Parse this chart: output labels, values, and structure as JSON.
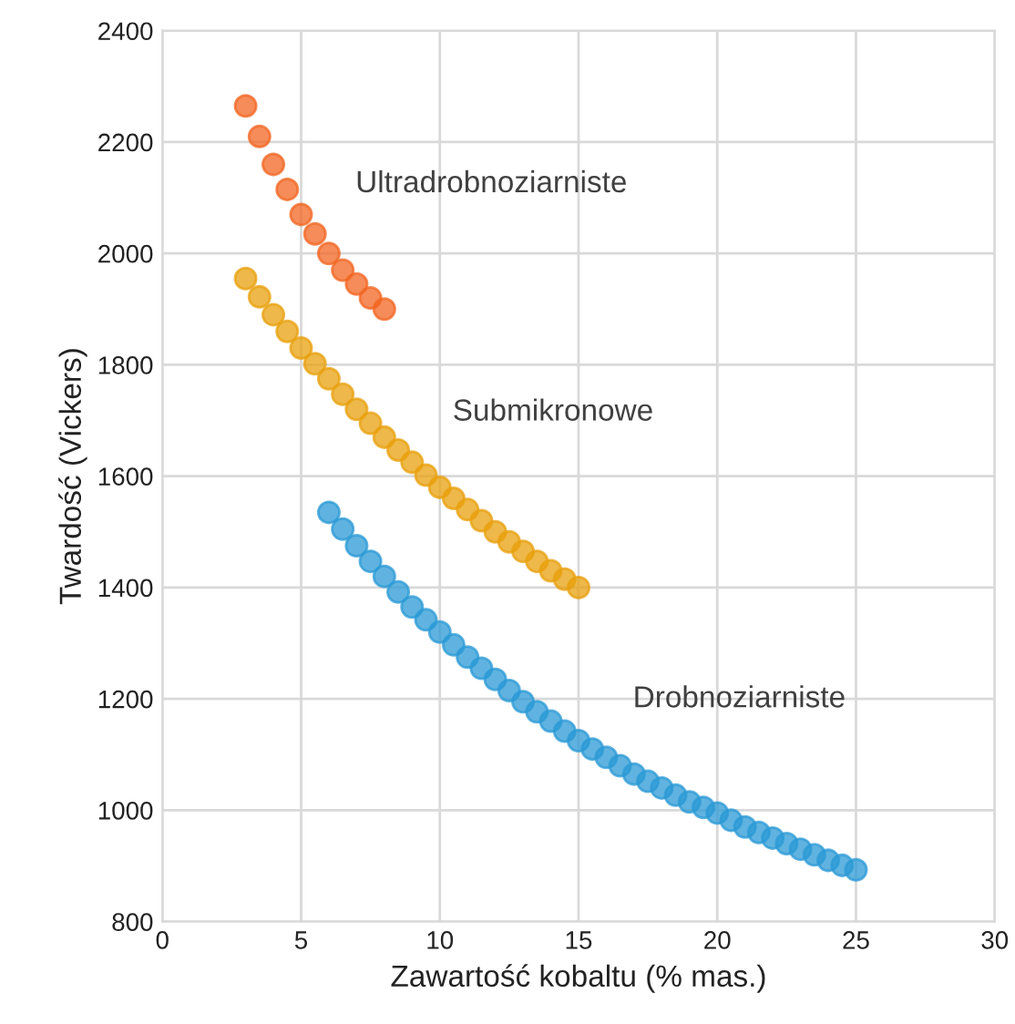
{
  "chart_data": {
    "type": "scatter",
    "xlabel": "Zawartość kobaltu (% mas.)",
    "ylabel": "Twardość (Vickers)",
    "xlim": [
      0,
      30
    ],
    "xticks": [
      0,
      5,
      10,
      15,
      20,
      25,
      30
    ],
    "ylim": [
      800,
      2400
    ],
    "yticks": [
      800,
      1000,
      1200,
      1400,
      1600,
      1800,
      2000,
      2200,
      2400
    ],
    "grid": true,
    "marker": "circle",
    "series": [
      {
        "name": "Ultradrobnoziarniste",
        "color": "#f26522",
        "x": [
          3,
          3.5,
          4,
          4.5,
          5,
          5.5,
          6,
          6.5,
          7,
          7.5,
          8
        ],
        "values": [
          2265,
          2210,
          2160,
          2115,
          2070,
          2035,
          2000,
          1970,
          1945,
          1920,
          1900
        ]
      },
      {
        "name": "Submikronowe",
        "color": "#e8a00e",
        "x": [
          3,
          3.5,
          4,
          4.5,
          5,
          5.5,
          6,
          6.5,
          7,
          7.5,
          8,
          8.5,
          9,
          9.5,
          10,
          10.5,
          11,
          11.5,
          12,
          12.5,
          13,
          13.5,
          14,
          14.5,
          15
        ],
        "values": [
          1955,
          1922,
          1890,
          1860,
          1830,
          1802,
          1775,
          1747,
          1720,
          1695,
          1670,
          1647,
          1625,
          1602,
          1580,
          1560,
          1540,
          1520,
          1500,
          1482,
          1465,
          1447,
          1430,
          1415,
          1400
        ]
      },
      {
        "name": "Drobnoziarniste",
        "color": "#2b9ad6",
        "x": [
          6,
          6.5,
          7,
          7.5,
          8,
          8.5,
          9,
          9.5,
          10,
          10.5,
          11,
          11.5,
          12,
          12.5,
          13,
          13.5,
          14,
          14.5,
          15,
          15.5,
          16,
          16.5,
          17,
          17.5,
          18,
          18.5,
          19,
          19.5,
          20,
          20.5,
          21,
          21.5,
          22,
          22.5,
          23,
          23.5,
          24,
          24.5,
          25
        ],
        "values": [
          1535,
          1505,
          1475,
          1447,
          1420,
          1392,
          1365,
          1342,
          1320,
          1297,
          1275,
          1255,
          1235,
          1215,
          1195,
          1177,
          1160,
          1142,
          1125,
          1110,
          1095,
          1080,
          1065,
          1052,
          1040,
          1027,
          1015,
          1005,
          995,
          982,
          970,
          960,
          950,
          940,
          930,
          920,
          910,
          901,
          893
        ]
      }
    ]
  }
}
